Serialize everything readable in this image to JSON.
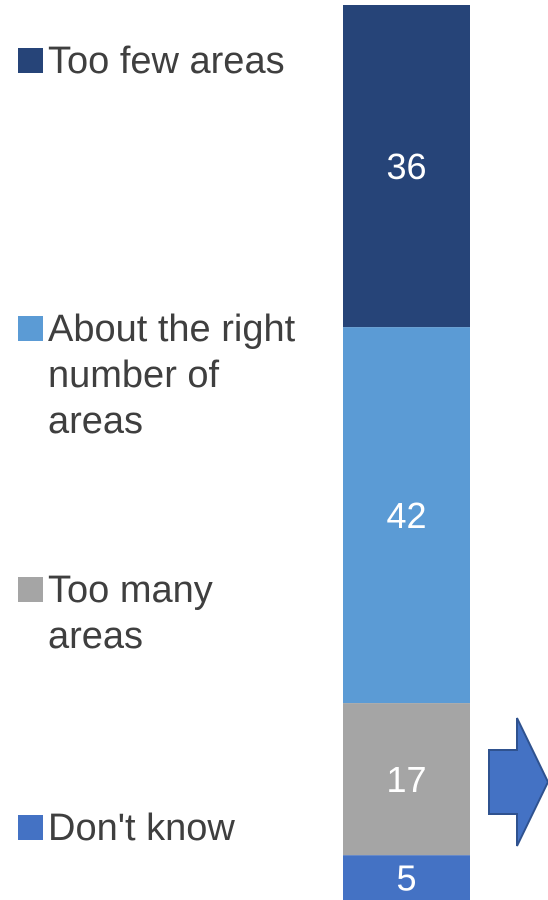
{
  "chart_data": {
    "type": "bar",
    "stacked": true,
    "categories": [
      ""
    ],
    "series": [
      {
        "name": "Too few areas",
        "values": [
          36
        ],
        "color": "#264478"
      },
      {
        "name": "About the right number of areas",
        "values": [
          42
        ],
        "color": "#5b9bd5"
      },
      {
        "name": "Too many areas",
        "values": [
          17
        ],
        "color": "#a5a5a5"
      },
      {
        "name": "Don't know",
        "values": [
          5
        ],
        "color": "#4472c4"
      }
    ],
    "legend": {
      "placement": "left",
      "items": [
        "Too few areas",
        "About the right number of areas",
        "Too many areas",
        "Don't know"
      ]
    },
    "data_labels": [
      "36",
      "42",
      "17",
      "5"
    ],
    "title": "",
    "xlabel": "",
    "ylabel": "",
    "ylim": [
      0,
      100
    ],
    "grid": false,
    "annotation": {
      "shape": "right-arrow",
      "color": "#4472c4",
      "outline": "#2f528f"
    }
  }
}
